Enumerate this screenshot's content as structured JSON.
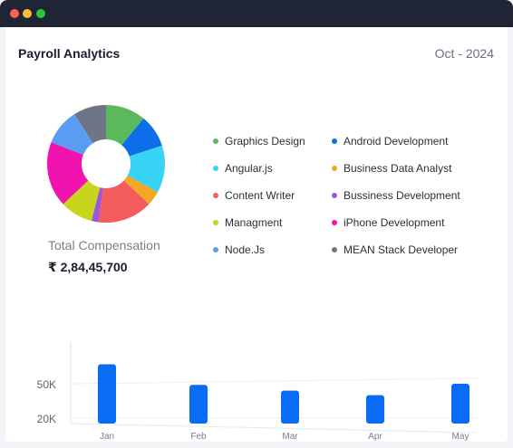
{
  "window": {
    "controls": {
      "close_color": "#ff5f57",
      "minimize_color": "#febc2e",
      "zoom_color": "#28c840"
    }
  },
  "card": {
    "title": "Payroll Analytics",
    "date": "Oct - 2024"
  },
  "summary": {
    "total_label": "Total Compensation",
    "total_value": "₹ 2,84,45,700"
  },
  "legend": [
    {
      "label": "Graphics Design",
      "color": "#5cb85c"
    },
    {
      "label": "Android Development",
      "color": "#0d6fe8"
    },
    {
      "label": "Angular.js",
      "color": "#38d3f5"
    },
    {
      "label": "Business Data Analyst",
      "color": "#f5a623"
    },
    {
      "label": "Content Writer",
      "color": "#f45b5b"
    },
    {
      "label": "Bussiness Development",
      "color": "#9b59d6"
    },
    {
      "label": "Managment",
      "color": "#c9d41c"
    },
    {
      "label": "iPhone Development",
      "color": "#f013b0"
    },
    {
      "label": "Node.Js",
      "color": "#5a9cf2"
    },
    {
      "label": "MEAN Stack Developer",
      "color": "#6f7486"
    }
  ],
  "chart_data": [
    {
      "type": "pie",
      "donut": true,
      "categories": [
        "Graphics Design",
        "Android Development",
        "Angular.js",
        "Business Data Analyst",
        "Content Writer",
        "Bussiness Development",
        "Managment",
        "iPhone Development",
        "Node.Js",
        "MEAN Stack Developer"
      ],
      "values": [
        11,
        9,
        13,
        4,
        15,
        2,
        9,
        18,
        10,
        9
      ],
      "colors": [
        "#5cb85c",
        "#0d6fe8",
        "#38d3f5",
        "#f5a623",
        "#f45b5b",
        "#9b59d6",
        "#c9d41c",
        "#f013b0",
        "#5a9cf2",
        "#6f7486"
      ],
      "legend_position": "right"
    },
    {
      "type": "bar",
      "categories": [
        "Jan",
        "Feb",
        "Mar",
        "Apr",
        "May"
      ],
      "values": [
        67000,
        49000,
        44000,
        40000,
        50000
      ],
      "yticks": [
        {
          "value": 20000,
          "label": "20K"
        },
        {
          "value": 50000,
          "label": "50K"
        }
      ],
      "ylim": [
        10000,
        90000
      ],
      "color": "#0a6cf5",
      "grid": true
    }
  ]
}
